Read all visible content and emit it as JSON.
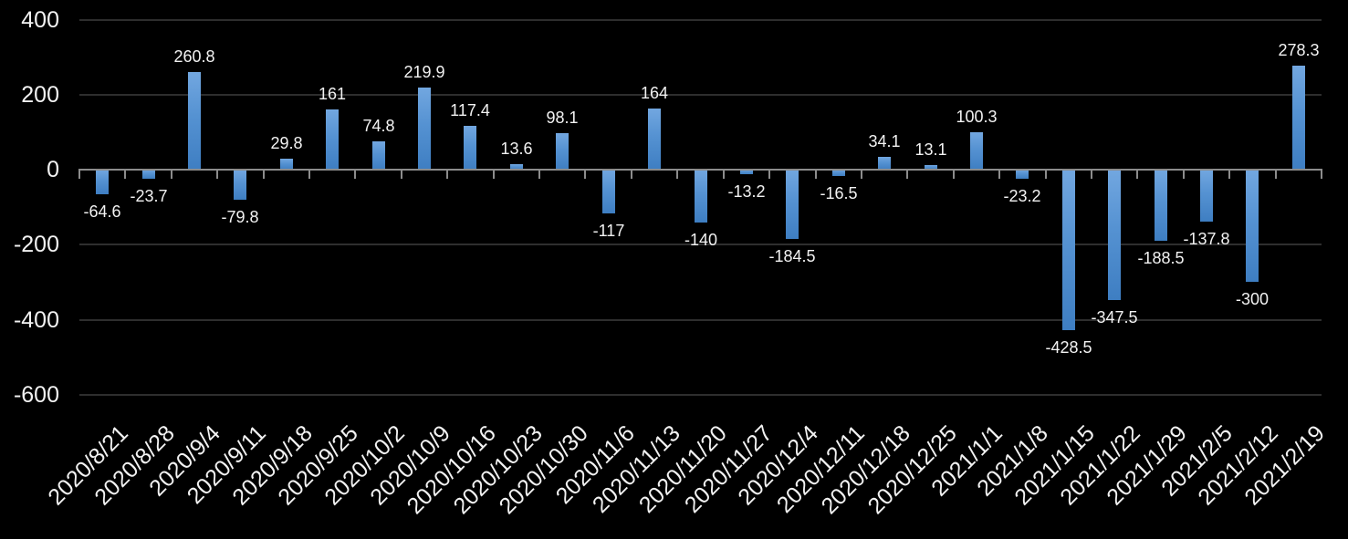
{
  "chart_data": {
    "type": "bar",
    "title": "",
    "xlabel": "",
    "ylabel": "",
    "categories": [
      "2020/8/21",
      "2020/8/28",
      "2020/9/4",
      "2020/9/11",
      "2020/9/18",
      "2020/9/25",
      "2020/10/2",
      "2020/10/9",
      "2020/10/16",
      "2020/10/23",
      "2020/10/30",
      "2020/11/6",
      "2020/11/13",
      "2020/11/20",
      "2020/11/27",
      "2020/12/4",
      "2020/12/11",
      "2020/12/18",
      "2020/12/25",
      "2021/1/1",
      "2021/1/8",
      "2021/1/15",
      "2021/1/22",
      "2021/1/29",
      "2021/2/5",
      "2021/2/12",
      "2021/2/19"
    ],
    "values": [
      -64.6,
      -23.7,
      260.8,
      -79.8,
      29.8,
      161,
      74.8,
      219.9,
      117.4,
      13.6,
      98.1,
      -117,
      164,
      -140,
      -13.2,
      -184.5,
      -16.5,
      34.1,
      13.1,
      100.3,
      -23.2,
      -428.5,
      -347.5,
      -188.5,
      -137.8,
      -300,
      278.3
    ],
    "data_labels": [
      "-64.6",
      "-23.7",
      "260.8",
      "-79.8",
      "29.8",
      "161",
      "74.8",
      "219.9",
      "117.4",
      "13.6",
      "98.1",
      "-117",
      "164",
      "-140",
      "-13.2",
      "-184.5",
      "-16.5",
      "34.1",
      "13.1",
      "100.3",
      "-23.2",
      "-428.5",
      "-347.5",
      "-188.5",
      "-137.8",
      "-300",
      "278.3"
    ],
    "y_ticks": [
      "400",
      "200",
      "0",
      "-200",
      "-400",
      "-600"
    ],
    "y_tick_values": [
      400,
      200,
      0,
      -200,
      -400,
      -600
    ],
    "ylim": [
      -600,
      400
    ],
    "grid": true,
    "legend": "none",
    "colors": {
      "background": "#000000",
      "bar_top": "#72a7e0",
      "bar_bottom": "#3e7ec2",
      "gridline": "#2e2e2e",
      "zero_axis": "#8c8c8c",
      "label_text": "#f2f2f2"
    }
  }
}
